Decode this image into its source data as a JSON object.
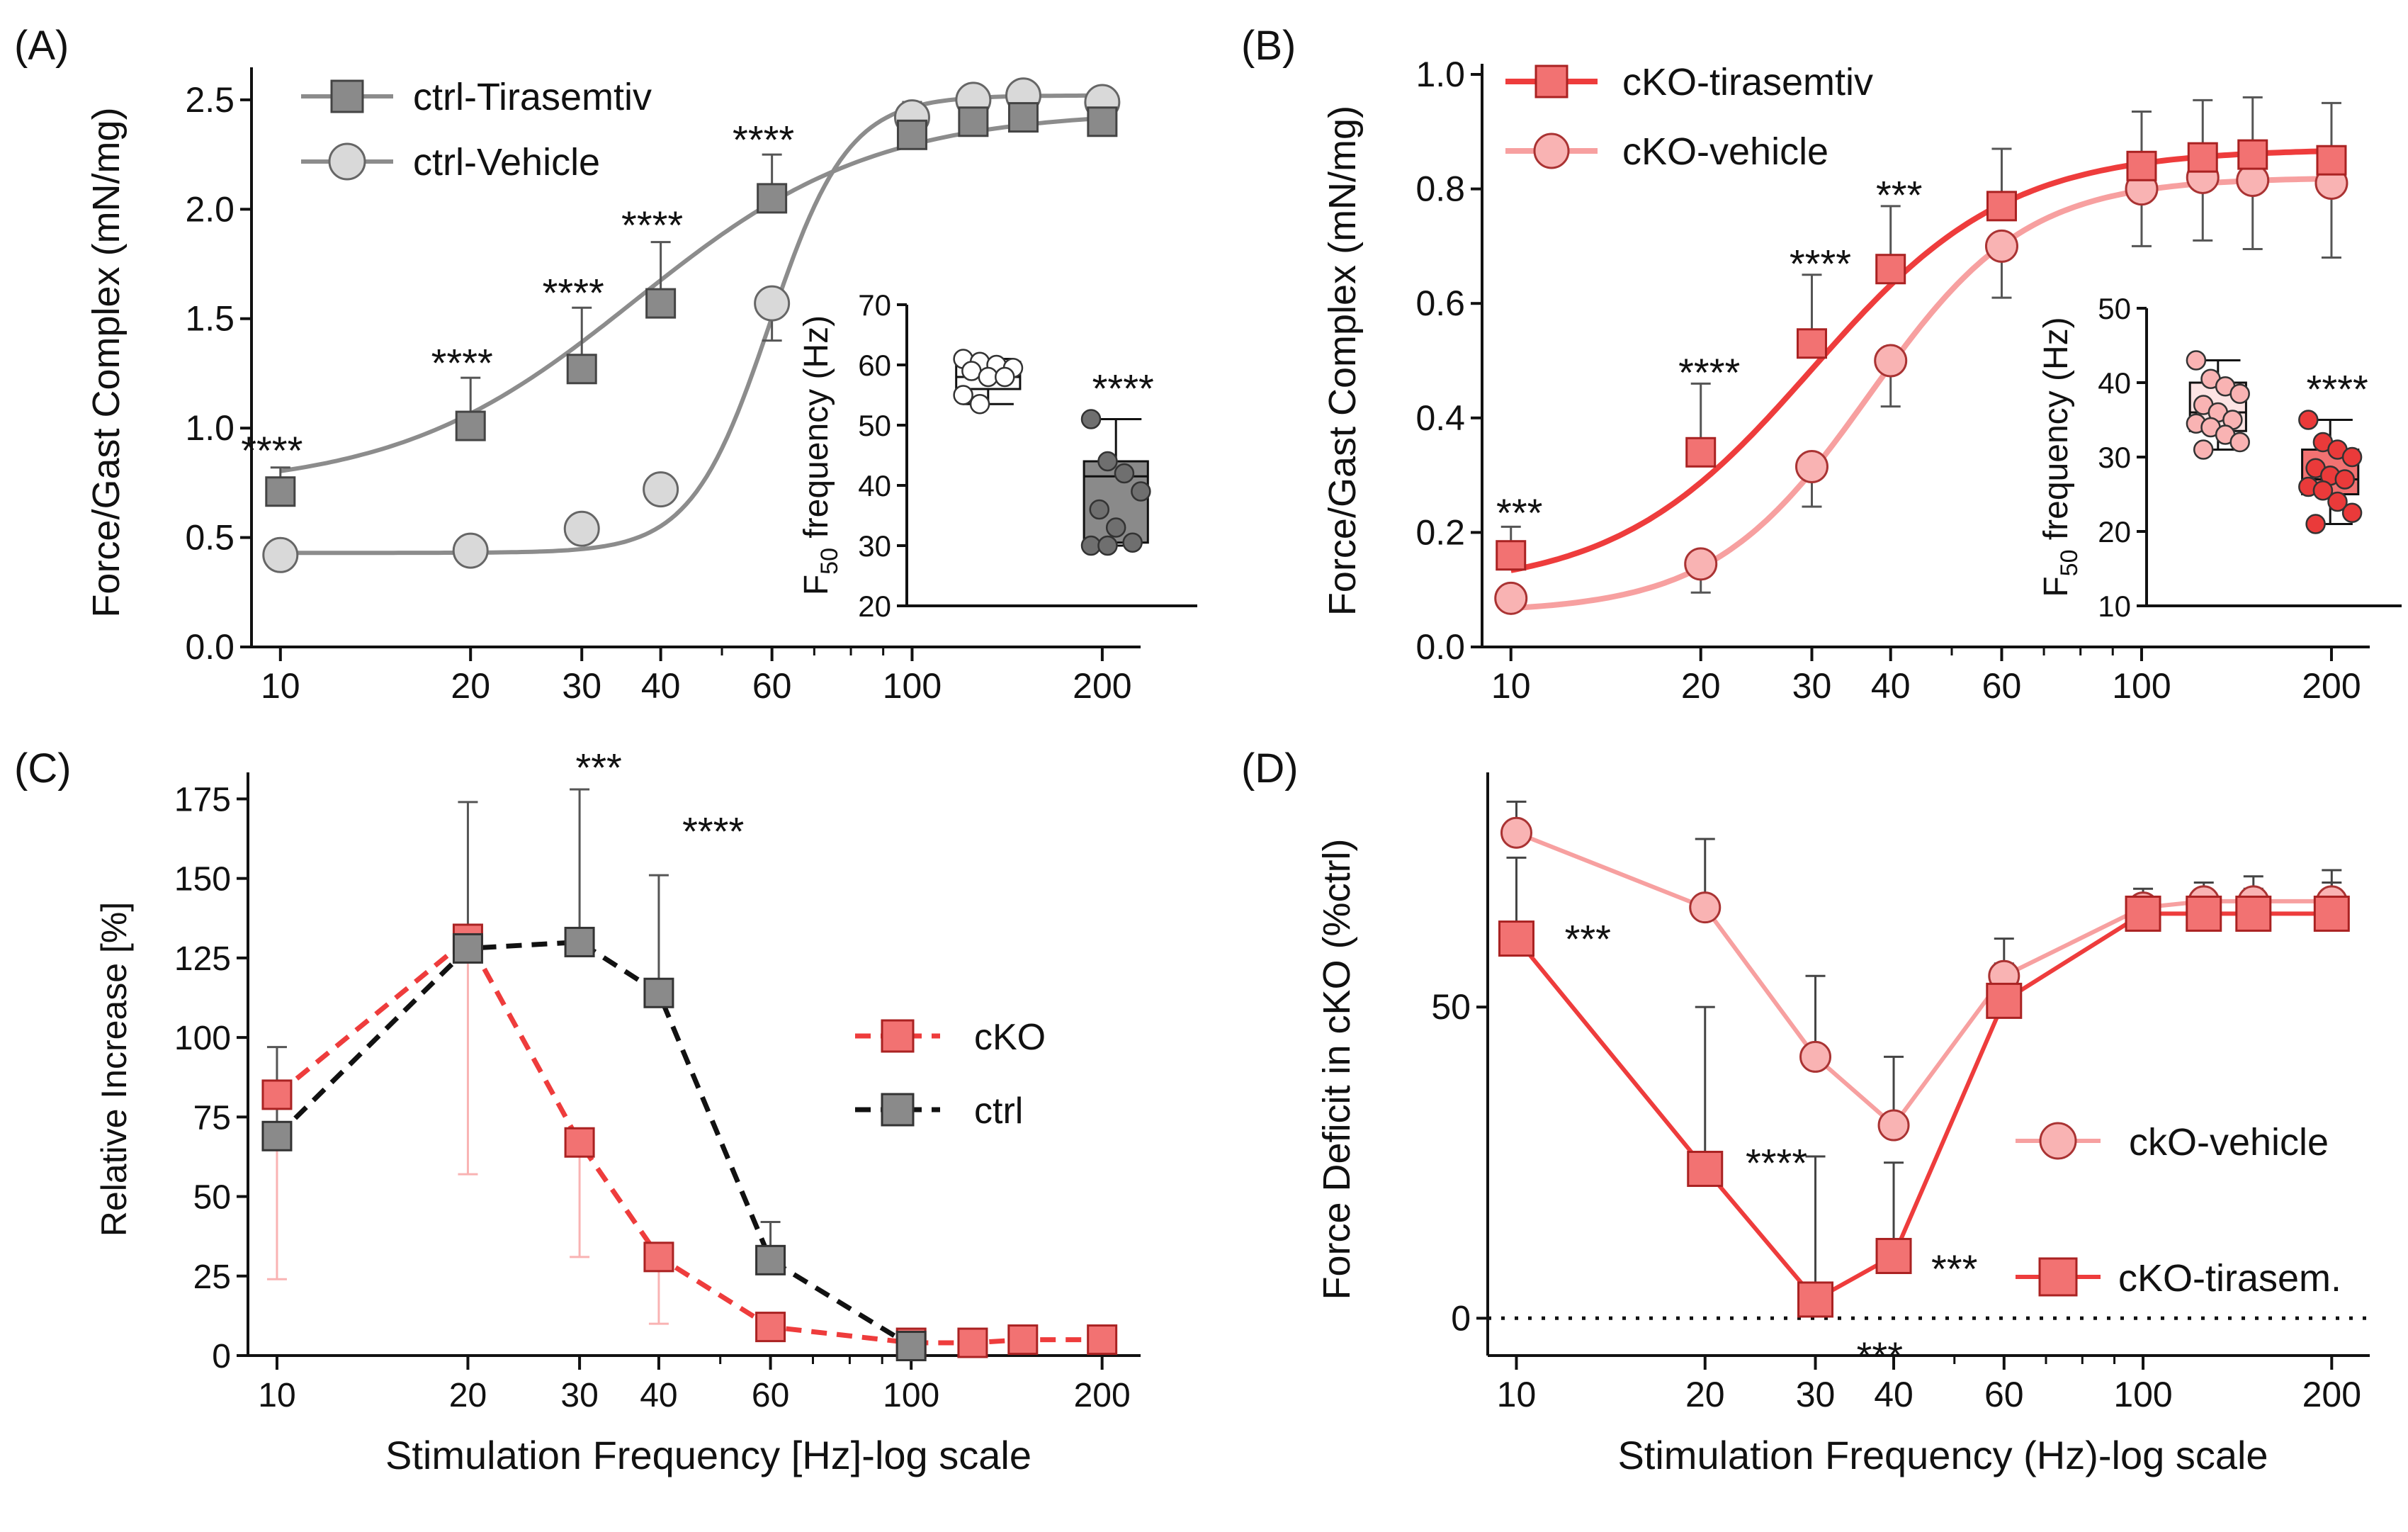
{
  "figure": {
    "panel_labels": [
      "(A)",
      "(B)",
      "(C)",
      "(D)"
    ],
    "colors": {
      "ctrl_dark": "#8a8a8a",
      "ctrl_light": "#d9d9d9",
      "ctrl_line": "#8c8c8c",
      "cko_dark": "#f27272",
      "cko_light": "#f9b3b3",
      "cko_line": "#ee3c3c",
      "cko_line_light": "#f7a0a0",
      "black": "#111111"
    }
  },
  "chart_data": [
    {
      "id": "A",
      "type": "line",
      "ylabel": "Force/Gast Complex (mN/mg)",
      "xscale": "log",
      "ylim": [
        0,
        2.6
      ],
      "xlim": [
        9,
        230
      ],
      "yticks": [
        0.0,
        0.5,
        1.0,
        1.5,
        2.0,
        2.5
      ],
      "ytick_labels": [
        "0.0",
        "0.5",
        "1.0",
        "1.5",
        "2.0",
        "2.5"
      ],
      "xticks": [
        10,
        20,
        30,
        40,
        60,
        100,
        200
      ],
      "xtick_labels": [
        "10",
        "20",
        "30",
        "40",
        "60",
        "100",
        "200"
      ],
      "series": [
        {
          "name": "ctrl-Tirasemtiv",
          "marker": "square",
          "x": [
            10,
            20,
            30,
            40,
            60,
            100,
            125,
            150,
            200
          ],
          "y": [
            0.71,
            1.01,
            1.27,
            1.57,
            2.05,
            2.34,
            2.4,
            2.42,
            2.4
          ],
          "err": [
            0.11,
            0.22,
            0.28,
            0.28,
            0.2,
            0.15,
            0.15,
            0.15,
            0.13
          ],
          "fit": [
            0.72,
            2.45,
            36.5,
            2.3
          ]
        },
        {
          "name": "ctrl-Vehicle",
          "marker": "circle",
          "x": [
            10,
            20,
            30,
            40,
            60,
            100,
            125,
            150,
            200
          ],
          "y": [
            0.42,
            0.44,
            0.54,
            0.72,
            1.57,
            2.42,
            2.5,
            2.52,
            2.49
          ],
          "err": [
            0,
            0,
            0,
            0,
            0.17,
            0.1,
            0.15,
            0.15,
            0.12
          ],
          "fit": [
            0.43,
            2.52,
            59.5,
            7.0
          ]
        }
      ],
      "annotations": [
        {
          "text": "****",
          "x": 10,
          "y": 0.9
        },
        {
          "text": "****",
          "x": 20,
          "y": 1.3
        },
        {
          "text": "****",
          "x": 30,
          "y": 1.62
        },
        {
          "text": "****",
          "x": 40,
          "y": 1.93
        },
        {
          "text": "****",
          "x": 60,
          "y": 2.32
        }
      ],
      "inset": {
        "type": "box",
        "ylabel_prefix": "F",
        "ylabel_sub": "50",
        "ylabel_rest": " frequency (Hz)",
        "ylim": [
          20,
          70
        ],
        "yticks": [
          20,
          30,
          40,
          50,
          60,
          70
        ],
        "ytick_labels": [
          "20",
          "30",
          "40",
          "50",
          "60",
          "70"
        ],
        "groups": [
          {
            "name": "ctrl-Vehicle",
            "min": 53.5,
            "q1": 56,
            "median": 58,
            "q3": 60.5,
            "max": 61,
            "points": [
              61,
              60.5,
              60,
              59.5,
              59,
              58,
              58,
              55,
              53.5
            ]
          },
          {
            "name": "ctrl-Tirasemtiv",
            "min": 30,
            "q1": 30.5,
            "median": 41.5,
            "q3": 44,
            "max": 51,
            "points": [
              51,
              44,
              42,
              39,
              36,
              33,
              30.5,
              30,
              30
            ]
          }
        ],
        "annotation": "****"
      }
    },
    {
      "id": "B",
      "type": "line",
      "ylabel": "Force/Gast Complex (mN/mg)",
      "xscale": "log",
      "ylim": [
        0,
        1.0
      ],
      "xlim": [
        9,
        230
      ],
      "yticks": [
        0.0,
        0.2,
        0.4,
        0.6,
        0.8,
        1.0
      ],
      "ytick_labels": [
        "0.0",
        "0.2",
        "0.4",
        "0.6",
        "0.8",
        "1.0"
      ],
      "xticks": [
        10,
        20,
        30,
        40,
        60,
        100,
        200
      ],
      "xtick_labels": [
        "10",
        "20",
        "30",
        "40",
        "60",
        "100",
        "200"
      ],
      "series": [
        {
          "name": "cKO-tirasemtiv",
          "marker": "square",
          "x": [
            10,
            20,
            30,
            40,
            60,
            100,
            125,
            150,
            200
          ],
          "y": [
            0.16,
            0.34,
            0.53,
            0.66,
            0.77,
            0.84,
            0.855,
            0.86,
            0.85
          ],
          "err": [
            0.05,
            0.12,
            0.12,
            0.11,
            0.1,
            0.095,
            0.1,
            0.1,
            0.1
          ],
          "fit": [
            0.1,
            0.87,
            30.0,
            2.8
          ]
        },
        {
          "name": "cKO-vehicle",
          "marker": "circle",
          "x": [
            10,
            20,
            30,
            40,
            60,
            100,
            125,
            150,
            200
          ],
          "y": [
            0.085,
            0.145,
            0.315,
            0.5,
            0.7,
            0.8,
            0.82,
            0.815,
            0.81
          ],
          "err": [
            0,
            0.05,
            0.07,
            0.08,
            0.09,
            0.1,
            0.11,
            0.12,
            0.13
          ],
          "fit": [
            0.06,
            0.82,
            37.0,
            3.5
          ]
        }
      ],
      "annotations": [
        {
          "text": "***",
          "x": 10,
          "y": 0.235
        },
        {
          "text": "****",
          "x": 20,
          "y": 0.48
        },
        {
          "text": "****",
          "x": 30,
          "y": 0.67
        },
        {
          "text": "***",
          "x": 40,
          "y": 0.79
        }
      ],
      "inset": {
        "type": "box",
        "ylabel_prefix": "F",
        "ylabel_sub": "50",
        "ylabel_rest": " frequency (Hz)",
        "ylim": [
          10,
          50
        ],
        "yticks": [
          10,
          20,
          30,
          40,
          50
        ],
        "ytick_labels": [
          "10",
          "20",
          "30",
          "40",
          "50"
        ],
        "groups": [
          {
            "name": "cKO-vehicle",
            "min": 31,
            "q1": 33.5,
            "median": 36,
            "q3": 40,
            "max": 43,
            "points": [
              43,
              40.5,
              39.5,
              38.5,
              37,
              36,
              35,
              34.5,
              34,
              33,
              32,
              31
            ]
          },
          {
            "name": "cKO-tirasemtiv",
            "min": 21,
            "q1": 25,
            "median": 27,
            "q3": 31,
            "max": 35,
            "points": [
              35,
              32,
              31,
              30,
              28.5,
              27.5,
              27,
              26,
              25.5,
              24,
              22.5,
              21
            ]
          }
        ],
        "annotation": "****"
      }
    },
    {
      "id": "C",
      "type": "line",
      "ylabel": "Relative Increase [%]",
      "xlabel": "Stimulation Frequency [Hz]-log scale",
      "xscale": "log",
      "ylim": [
        0,
        180
      ],
      "xlim": [
        9,
        230
      ],
      "yticks": [
        0,
        25,
        50,
        75,
        100,
        125,
        150,
        175
      ],
      "ytick_labels": [
        "0",
        "25",
        "50",
        "75",
        "100",
        "125",
        "150",
        "175"
      ],
      "xticks": [
        10,
        20,
        30,
        40,
        60,
        100,
        200
      ],
      "xtick_labels": [
        "10",
        "20",
        "30",
        "40",
        "60",
        "100",
        "200"
      ],
      "legend": [
        "cKO",
        "ctrl"
      ],
      "series": [
        {
          "name": "cKO",
          "marker": "square",
          "dashed": true,
          "x": [
            10,
            20,
            30,
            40,
            60,
            100,
            125,
            150,
            200
          ],
          "y": [
            82,
            131,
            67,
            31,
            9,
            4,
            4,
            5,
            5
          ],
          "err_low": [
            58,
            74,
            36,
            21,
            0,
            0,
            0,
            0,
            0
          ],
          "err_high": [
            0,
            0,
            0,
            0,
            0,
            0,
            0,
            0,
            0
          ]
        },
        {
          "name": "ctrl",
          "marker": "square",
          "dashed": true,
          "x": [
            10,
            20,
            30,
            40,
            60,
            100
          ],
          "y": [
            69,
            128,
            130,
            114,
            30,
            3
          ],
          "err_high": [
            28,
            46,
            48,
            37,
            12,
            0
          ],
          "err_low": [
            0,
            0,
            0,
            0,
            0,
            0
          ]
        }
      ],
      "annotations": [
        {
          "text": "***",
          "x": 33,
          "y": 185
        },
        {
          "text": "****",
          "x": 50,
          "y": 165
        }
      ]
    },
    {
      "id": "D",
      "type": "line",
      "ylabel": "Force Deficit in cKO (%ctrl)",
      "xlabel": "Stimulation Frequency (Hz)-log scale",
      "xscale": "log",
      "ylim": [
        -6,
        86
      ],
      "xlim": [
        9,
        230
      ],
      "yticks": [
        0,
        50
      ],
      "ytick_labels": [
        "0",
        "50"
      ],
      "xticks": [
        10,
        20,
        30,
        40,
        60,
        100,
        200
      ],
      "xtick_labels": [
        "10",
        "20",
        "30",
        "40",
        "60",
        "100",
        "200"
      ],
      "legend": [
        "ckO-vehicle",
        "cKO-tirasem."
      ],
      "series": [
        {
          "name": "ckO-vehicle",
          "marker": "circle",
          "x": [
            10,
            20,
            30,
            40,
            60,
            100,
            125,
            150,
            200
          ],
          "y": [
            78,
            66,
            42,
            31,
            55,
            66,
            67,
            67,
            67
          ],
          "err": [
            5,
            11,
            13,
            11,
            6,
            3,
            3,
            4,
            5
          ]
        },
        {
          "name": "cKO-tirasem.",
          "marker": "square",
          "x": [
            10,
            20,
            30,
            40,
            60,
            100,
            125,
            150,
            200
          ],
          "y": [
            61,
            24,
            3,
            10,
            51,
            65,
            65,
            65,
            65
          ],
          "err": [
            13,
            26,
            23,
            15,
            6,
            2,
            3,
            4,
            5
          ]
        }
      ],
      "annotations": [
        {
          "text": "***",
          "x": 13,
          "y": 61
        },
        {
          "text": "****",
          "x": 26,
          "y": 25
        },
        {
          "text": "***",
          "x": 50,
          "y": 8
        },
        {
          "text": "***",
          "x": 38,
          "y": -6
        }
      ]
    }
  ]
}
